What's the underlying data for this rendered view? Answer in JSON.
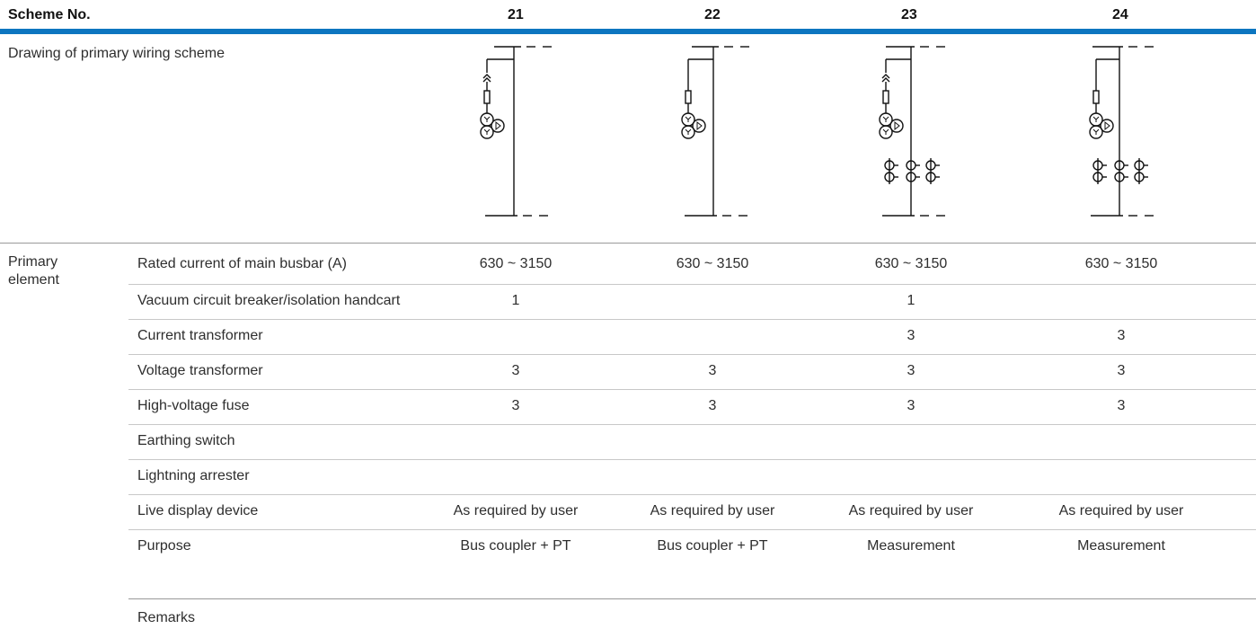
{
  "header": {
    "label": "Scheme No.",
    "schemes": [
      "21",
      "22",
      "23",
      "24"
    ]
  },
  "drawing_row": {
    "label": "Drawing of primary wiring scheme"
  },
  "group_label": {
    "line1": "Primary",
    "line2": "element"
  },
  "rows": [
    {
      "label": "Rated current of main busbar (A)",
      "values": [
        "630 ~ 3150",
        "630 ~ 3150",
        "630 ~ 3150",
        "630 ~ 3150"
      ]
    },
    {
      "label": "Vacuum circuit breaker/isolation handcart",
      "values": [
        "1",
        "",
        "1",
        ""
      ]
    },
    {
      "label": "Current transformer",
      "values": [
        "",
        "",
        "3",
        "3"
      ]
    },
    {
      "label": "Voltage transformer",
      "values": [
        "3",
        "3",
        "3",
        "3"
      ]
    },
    {
      "label": "High-voltage fuse",
      "values": [
        "3",
        "3",
        "3",
        "3"
      ]
    },
    {
      "label": "Earthing switch",
      "values": [
        "",
        "",
        "",
        ""
      ]
    },
    {
      "label": "Lightning arrester",
      "values": [
        "",
        "",
        "",
        ""
      ]
    },
    {
      "label": "Live display device",
      "values": [
        "As required by user",
        "As required by user",
        "As required by user",
        "As required by user"
      ]
    },
    {
      "label": "Purpose",
      "values": [
        "Bus coupler + PT",
        "Bus coupler + PT",
        "Measurement",
        "Measurement"
      ]
    }
  ],
  "remarks": {
    "label": "Remarks"
  }
}
